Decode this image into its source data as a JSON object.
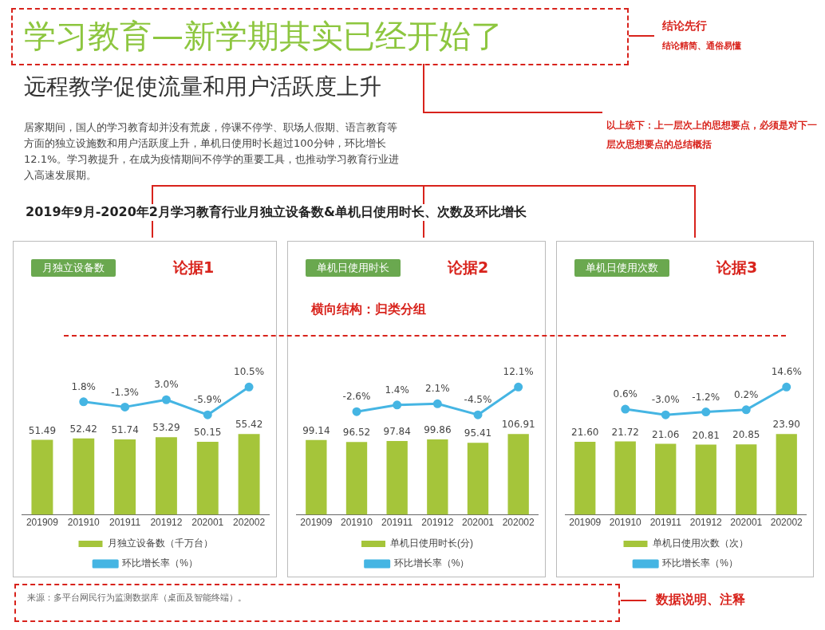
{
  "chart_data": [
    {
      "type": "other",
      "title": "学习教育—新学期其实已经开始了",
      "subtitle": "远程教学促使流量和用户活跃度上升",
      "annotations": [
        "居家期间，国人的学习教育却并没有荒废，停课不停学、职场人假期、语言教育等方面的独立设施数和用户活跃度上升，单机日使用时长超过100分钟，环比增长12.1%。学习教提升，在成为疫情期间不停学的重要工具，也推动学习教育行业进入高速发展期。",
        "结论先行",
        "结论精简、通俗易懂",
        "以上统下：上一层次上的思想要点，必须是对下一层次思想要点的总结概括",
        "2019年9月-2020年2月学习教育行业月独立设备数&单机日使用时长、次数及环比增长",
        "横向结构：归类分组",
        "来源：多平台网民行为监测数据库（桌面及智能终端）。",
        "数据说明、注释"
      ]
    },
    {
      "type": "line",
      "title": "月独立设备数",
      "annotations": [
        "论据1"
      ],
      "legend": "bottom",
      "marker": "circle",
      "tick_labels": false,
      "categories": [
        "201909",
        "201910",
        "201911",
        "201912",
        "202001",
        "202002"
      ],
      "series": [
        {
          "name": "环比增长率（%）",
          "color": "#45b5e3",
          "values": [
            null,
            1.8,
            -1.3,
            3.0,
            -5.9,
            10.5
          ],
          "value_labels": [
            null,
            "1.8%",
            "-1.3%",
            "3.0%",
            "-5.9%",
            "10.5%"
          ]
        }
      ]
    },
    {
      "type": "bar",
      "legend": "bottom",
      "tick_labels": "x",
      "categories": [
        "201909",
        "201910",
        "201911",
        "201912",
        "202001",
        "202002"
      ],
      "series": [
        {
          "name": "月独立设备数（千万台）",
          "color": "#a5c53a",
          "values": [
            51.49,
            52.42,
            51.74,
            53.29,
            50.15,
            55.42
          ],
          "value_labels": [
            "51.49",
            "52.42",
            "51.74",
            "53.29",
            "50.15",
            "55.42"
          ]
        }
      ]
    },
    {
      "type": "line",
      "title": "单机日使用时长",
      "annotations": [
        "论据2"
      ],
      "legend": "bottom",
      "marker": "circle",
      "tick_labels": false,
      "categories": [
        "201909",
        "201910",
        "201911",
        "201912",
        "202001",
        "202002"
      ],
      "series": [
        {
          "name": "环比增长率（%）",
          "color": "#45b5e3",
          "values": [
            null,
            -2.6,
            1.4,
            2.1,
            -4.5,
            12.1
          ],
          "value_labels": [
            null,
            "-2.6%",
            "1.4%",
            "2.1%",
            "-4.5%",
            "12.1%"
          ]
        }
      ]
    },
    {
      "type": "bar",
      "legend": "bottom",
      "tick_labels": "x",
      "categories": [
        "201909",
        "201910",
        "201911",
        "201912",
        "202001",
        "202002"
      ],
      "series": [
        {
          "name": "单机日使用时长(分)",
          "color": "#a5c53a",
          "values": [
            99.14,
            96.52,
            97.84,
            99.86,
            95.41,
            106.91
          ],
          "value_labels": [
            "99.14",
            "96.52",
            "97.84",
            "99.86",
            "95.41",
            "106.91"
          ]
        }
      ]
    },
    {
      "type": "line",
      "title": "单机日使用次数",
      "annotations": [
        "论据3"
      ],
      "legend": "bottom",
      "marker": "circle",
      "tick_labels": false,
      "categories": [
        "201909",
        "201910",
        "201911",
        "201912",
        "202001",
        "202002"
      ],
      "series": [
        {
          "name": "环比增长率（%）",
          "color": "#45b5e3",
          "values": [
            null,
            0.6,
            -3.0,
            -1.2,
            0.2,
            14.6
          ],
          "value_labels": [
            null,
            "0.6%",
            "-3.0%",
            "-1.2%",
            "0.2%",
            "14.6%"
          ]
        }
      ]
    },
    {
      "type": "bar",
      "legend": "bottom",
      "tick_labels": "x",
      "categories": [
        "201909",
        "201910",
        "201911",
        "201912",
        "202001",
        "202002"
      ],
      "series": [
        {
          "name": "单机日使用次数（次）",
          "color": "#a5c53a",
          "values": [
            21.6,
            21.72,
            21.06,
            20.81,
            20.85,
            23.9
          ],
          "value_labels": [
            "21.60",
            "21.72",
            "21.06",
            "20.81",
            "20.85",
            "23.90"
          ]
        }
      ]
    }
  ]
}
